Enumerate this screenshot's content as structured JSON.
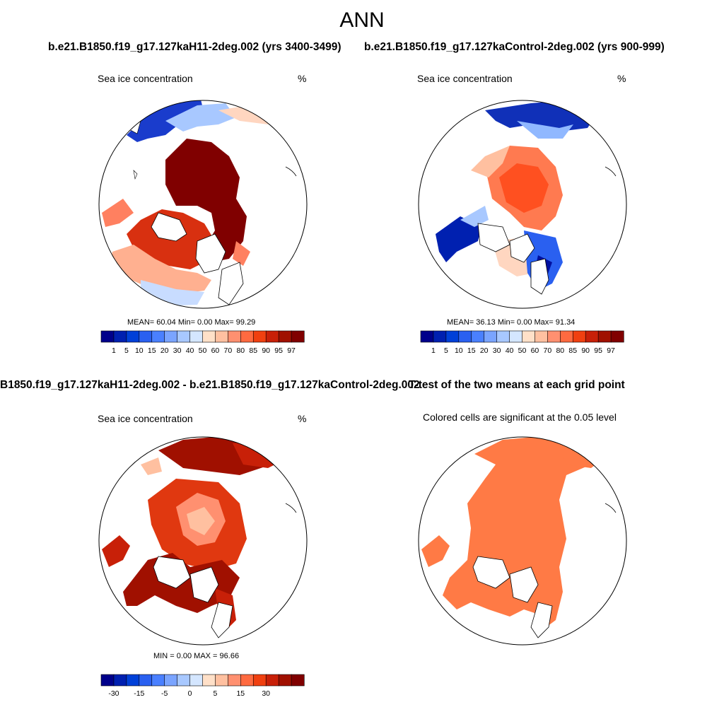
{
  "figure": {
    "season": "ANN",
    "case_test": "b.e21.B1850.f19_g17.127kaH11-2deg.002 (yrs 3400-3499)",
    "case_control": "b.e21.B1850.f19_g17.127kaControl-2deg.002 (yrs 900-999)"
  },
  "panels": {
    "test": {
      "variable": "Sea ice concentration",
      "units": "%",
      "stats": "MEAN=  60.04  Min=   0.00  Max=  99.29"
    },
    "control": {
      "variable": "Sea ice concentration",
      "units": "%",
      "stats": "MEAN=  36.13  Min=   0.00  Max=  91.34"
    },
    "diff": {
      "title": "B1850.f19_g17.127kaH11-2deg.002 - b.e21.B1850.f19_g17.127kaControl-2deg.002",
      "variable": "Sea ice concentration",
      "units": "%",
      "stats": "MIN =   0.00 MAX =  96.66"
    },
    "ttest": {
      "title": "T-test of the two means at each grid point",
      "subtitle": "Colored cells are significant at the 0.05 level"
    }
  },
  "colorbars": {
    "concentration": {
      "labels": [
        "1",
        "5",
        "10",
        "15",
        "20",
        "30",
        "40",
        "50",
        "60",
        "70",
        "80",
        "85",
        "90",
        "95",
        "97"
      ],
      "colors": [
        "#00008b",
        "#0020b0",
        "#0040d8",
        "#2a60f0",
        "#4a80ff",
        "#7aa4ff",
        "#a8c8ff",
        "#d4e6ff",
        "#ffe0c8",
        "#ffc0a0",
        "#ff9070",
        "#ff6a40",
        "#f04010",
        "#c82008",
        "#a01000",
        "#800000"
      ]
    },
    "difference": {
      "labels": [
        "-30",
        "-15",
        "-5",
        "0",
        "5",
        "15",
        "30"
      ],
      "colors": [
        "#00008b",
        "#0020b0",
        "#0040d8",
        "#2a60f0",
        "#4a80ff",
        "#7aa4ff",
        "#a8c8ff",
        "#d4e6ff",
        "#ffe0c8",
        "#ffc0a0",
        "#ff9070",
        "#ff6a40",
        "#f04010",
        "#c82008",
        "#a01000",
        "#800000"
      ],
      "label_slots": [
        1,
        3,
        5,
        7,
        9,
        11,
        13
      ]
    }
  },
  "chart_data": [
    {
      "type": "map",
      "projection": "north-polar-stereographic",
      "title": "Sea ice concentration",
      "units": "%",
      "mean": 60.04,
      "min": 0.0,
      "max": 99.29,
      "case": "b.e21.B1850.f19_g17.127kaH11-2deg.002 (yrs 3400-3499)"
    },
    {
      "type": "map",
      "projection": "north-polar-stereographic",
      "title": "Sea ice concentration",
      "units": "%",
      "mean": 36.13,
      "min": 0.0,
      "max": 91.34,
      "case": "b.e21.B1850.f19_g17.127kaControl-2deg.002 (yrs 900-999)"
    },
    {
      "type": "map",
      "projection": "north-polar-stereographic",
      "title": "Sea ice concentration (difference)",
      "units": "%",
      "min": 0.0,
      "max": 96.66
    },
    {
      "type": "map",
      "projection": "north-polar-stereographic",
      "title": "T-test of the two means at each grid point",
      "note": "Colored cells are significant at the 0.05 level"
    }
  ]
}
